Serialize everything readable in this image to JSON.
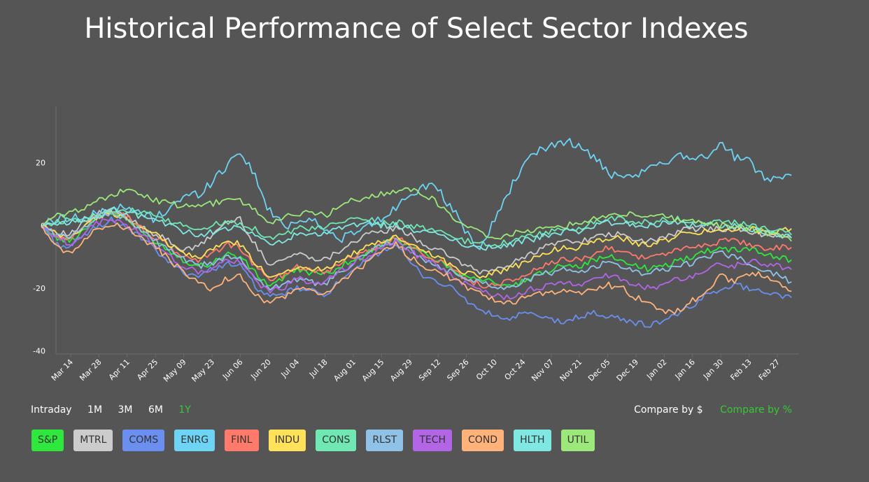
{
  "title": "Historical Performance of Select Sector Indexes",
  "accent": "#37c837",
  "ranges": [
    {
      "label": "Intraday",
      "active": false
    },
    {
      "label": "1M",
      "active": false
    },
    {
      "label": "3M",
      "active": false
    },
    {
      "label": "6M",
      "active": false
    },
    {
      "label": "1Y",
      "active": true
    }
  ],
  "compare": [
    {
      "label": "Compare by $",
      "active": false
    },
    {
      "label": "Compare by %",
      "active": true
    }
  ],
  "chart_data": {
    "type": "line",
    "title": "Historical Performance of Select Sector Indexes",
    "xlabel": "",
    "ylabel": "",
    "ylim": [
      -41,
      38
    ],
    "yticks": [
      20,
      0,
      -20,
      -40
    ],
    "x_labels": [
      "Mar 14",
      "Mar 28",
      "Apr 11",
      "Apr 25",
      "May 09",
      "May 23",
      "Jun 06",
      "Jun 20",
      "Jul 04",
      "Jul 18",
      "Aug 01",
      "Aug 15",
      "Aug 29",
      "Sep 12",
      "Sep 26",
      "Oct 10",
      "Oct 24",
      "Nov 07",
      "Nov 21",
      "Dec 05",
      "Dec 19",
      "Jan 02",
      "Jan 16",
      "Jan 30",
      "Feb 13",
      "Feb 27"
    ],
    "x_keypoints": [
      "Mar 01",
      "Mar 07",
      "Mar 14",
      "Mar 21",
      "Mar 28",
      "Apr 04",
      "Apr 11",
      "Apr 18",
      "Apr 25",
      "May 02",
      "May 09",
      "May 16",
      "May 23",
      "May 30",
      "Jun 06",
      "Jun 13",
      "Jun 20",
      "Jun 27",
      "Jul 04",
      "Jul 11",
      "Jul 18",
      "Jul 25",
      "Aug 01",
      "Aug 08",
      "Aug 15",
      "Aug 22",
      "Aug 29",
      "Sep 05",
      "Sep 12",
      "Sep 19",
      "Sep 26",
      "Oct 03",
      "Oct 10",
      "Oct 17",
      "Oct 24",
      "Oct 31",
      "Nov 07",
      "Nov 14",
      "Nov 21",
      "Nov 28",
      "Dec 05",
      "Dec 12",
      "Dec 19",
      "Dec 26",
      "Jan 02",
      "Jan 09",
      "Jan 16",
      "Jan 23",
      "Jan 30",
      "Feb 06",
      "Feb 13",
      "Feb 20",
      "Feb 27",
      "Mar 01"
    ],
    "series": [
      {
        "name": "S&P",
        "color": "#2ee83d",
        "values": [
          0,
          -4,
          -5,
          -1,
          3,
          4,
          2,
          -2,
          -5,
          -8,
          -11,
          -13,
          -12,
          -9,
          -10,
          -15,
          -19,
          -17,
          -14,
          -15,
          -16,
          -13,
          -11,
          -9,
          -6,
          -4,
          -7,
          -9,
          -11,
          -14,
          -16,
          -17,
          -18,
          -20,
          -18,
          -16,
          -14,
          -12,
          -13,
          -11,
          -10,
          -11,
          -13,
          -14,
          -13,
          -11,
          -10,
          -8,
          -7,
          -8,
          -7,
          -9,
          -10,
          -11
        ]
      },
      {
        "name": "MTRL",
        "color": "#cccccc",
        "values": [
          0,
          -2,
          -3,
          1,
          4,
          5,
          3,
          0,
          -3,
          -5,
          -8,
          -7,
          -3,
          1,
          2,
          -6,
          -12,
          -11,
          -9,
          -10,
          -11,
          -8,
          -5,
          -3,
          -2,
          -1,
          -3,
          -6,
          -8,
          -10,
          -13,
          -15,
          -14,
          -13,
          -10,
          -8,
          -6,
          -5,
          -5,
          -4,
          -3,
          -3,
          -5,
          -5,
          -4,
          -2,
          -1,
          -1,
          -1,
          -1,
          -2,
          -3,
          -3,
          -4
        ]
      },
      {
        "name": "COMS",
        "color": "#6a8ff0",
        "values": [
          0,
          -6,
          -7,
          -3,
          0,
          2,
          -1,
          -4,
          -8,
          -12,
          -15,
          -16,
          -14,
          -12,
          -13,
          -19,
          -23,
          -22,
          -20,
          -21,
          -22,
          -18,
          -15,
          -11,
          -8,
          -6,
          -12,
          -16,
          -18,
          -20,
          -24,
          -27,
          -29,
          -30,
          -28,
          -29,
          -30,
          -31,
          -29,
          -28,
          -29,
          -30,
          -31,
          -32,
          -30,
          -28,
          -26,
          -22,
          -20,
          -19,
          -20,
          -21,
          -22,
          -23
        ]
      },
      {
        "name": "ENRG",
        "color": "#6dd4f5",
        "values": [
          0,
          2,
          3,
          2,
          4,
          6,
          5,
          4,
          2,
          6,
          9,
          10,
          14,
          19,
          24,
          16,
          5,
          0,
          1,
          3,
          -2,
          -4,
          -3,
          0,
          2,
          6,
          10,
          13,
          11,
          5,
          -2,
          -8,
          2,
          11,
          19,
          23,
          26,
          27,
          25,
          22,
          17,
          14,
          16,
          18,
          20,
          23,
          22,
          22,
          26,
          22,
          20,
          16,
          15,
          16
        ]
      },
      {
        "name": "FINL",
        "color": "#ff7a6a",
        "values": [
          0,
          -3,
          -4,
          0,
          3,
          5,
          3,
          -1,
          -4,
          -7,
          -10,
          -11,
          -9,
          -6,
          -7,
          -13,
          -17,
          -16,
          -13,
          -14,
          -15,
          -12,
          -10,
          -8,
          -6,
          -4,
          -6,
          -9,
          -11,
          -14,
          -17,
          -19,
          -19,
          -18,
          -16,
          -14,
          -12,
          -11,
          -11,
          -9,
          -7,
          -8,
          -10,
          -10,
          -9,
          -8,
          -7,
          -6,
          -5,
          -5,
          -6,
          -7,
          -7,
          -7
        ]
      },
      {
        "name": "INDU",
        "color": "#ffe25a",
        "values": [
          0,
          -3,
          -4,
          0,
          3,
          4,
          2,
          -1,
          -3,
          -6,
          -9,
          -10,
          -8,
          -5,
          -6,
          -12,
          -16,
          -15,
          -13,
          -14,
          -14,
          -11,
          -9,
          -7,
          -5,
          -4,
          -6,
          -8,
          -10,
          -13,
          -15,
          -16,
          -15,
          -14,
          -12,
          -10,
          -8,
          -7,
          -7,
          -5,
          -4,
          -4,
          -6,
          -6,
          -5,
          -3,
          -2,
          -2,
          -1,
          -1,
          -1,
          -2,
          -2,
          -1
        ]
      },
      {
        "name": "CONS",
        "color": "#6fe8b3",
        "values": [
          0,
          1,
          2,
          2,
          4,
          5,
          5,
          4,
          3,
          1,
          0,
          -1,
          0,
          1,
          1,
          -1,
          -4,
          -3,
          -1,
          -1,
          -1,
          1,
          2,
          2,
          1,
          1,
          0,
          -1,
          -2,
          -4,
          -5,
          -6,
          -6,
          -5,
          -4,
          -3,
          -2,
          -1,
          -1,
          1,
          2,
          2,
          1,
          1,
          2,
          2,
          1,
          1,
          1,
          1,
          0,
          -1,
          -2,
          -3
        ]
      },
      {
        "name": "RLST",
        "color": "#8fc2e6",
        "values": [
          0,
          -3,
          -4,
          0,
          3,
          4,
          2,
          -2,
          -5,
          -8,
          -11,
          -13,
          -12,
          -10,
          -11,
          -16,
          -20,
          -19,
          -17,
          -18,
          -19,
          -15,
          -12,
          -9,
          -6,
          -5,
          -8,
          -11,
          -13,
          -15,
          -17,
          -18,
          -19,
          -20,
          -18,
          -16,
          -15,
          -14,
          -15,
          -13,
          -12,
          -13,
          -15,
          -15,
          -14,
          -13,
          -12,
          -10,
          -9,
          -10,
          -12,
          -14,
          -16,
          -18
        ]
      },
      {
        "name": "TECH",
        "color": "#b266e6",
        "values": [
          0,
          -4,
          -6,
          -2,
          1,
          2,
          0,
          -3,
          -6,
          -10,
          -13,
          -15,
          -14,
          -11,
          -12,
          -17,
          -21,
          -20,
          -17,
          -18,
          -18,
          -15,
          -12,
          -10,
          -7,
          -5,
          -8,
          -11,
          -13,
          -16,
          -19,
          -21,
          -22,
          -23,
          -21,
          -20,
          -19,
          -18,
          -19,
          -17,
          -16,
          -17,
          -19,
          -20,
          -19,
          -17,
          -16,
          -14,
          -12,
          -13,
          -11,
          -12,
          -13,
          -14
        ]
      },
      {
        "name": "COND",
        "color": "#ffb37a",
        "values": [
          0,
          -7,
          -9,
          -4,
          -1,
          1,
          -1,
          -4,
          -7,
          -11,
          -15,
          -18,
          -21,
          -17,
          -16,
          -22,
          -25,
          -23,
          -20,
          -21,
          -22,
          -18,
          -15,
          -12,
          -8,
          -6,
          -10,
          -13,
          -15,
          -17,
          -20,
          -22,
          -24,
          -25,
          -23,
          -22,
          -21,
          -21,
          -22,
          -20,
          -19,
          -20,
          -23,
          -24,
          -28,
          -27,
          -24,
          -21,
          -16,
          -18,
          -15,
          -16,
          -18,
          -21
        ]
      },
      {
        "name": "HLTH",
        "color": "#7fe8e3",
        "values": [
          0,
          0,
          1,
          2,
          3,
          5,
          4,
          3,
          2,
          0,
          -2,
          -3,
          -2,
          -1,
          -1,
          -3,
          -6,
          -5,
          -3,
          -3,
          -3,
          -1,
          0,
          1,
          0,
          0,
          -1,
          -2,
          -3,
          -5,
          -6,
          -7,
          -7,
          -6,
          -5,
          -4,
          -3,
          -2,
          -2,
          0,
          1,
          1,
          0,
          0,
          1,
          1,
          0,
          0,
          0,
          0,
          -1,
          -2,
          -3,
          -4
        ]
      },
      {
        "name": "UTIL",
        "color": "#9ce87a",
        "values": [
          0,
          3,
          4,
          6,
          8,
          10,
          11,
          10,
          8,
          7,
          6,
          6,
          7,
          8,
          8,
          5,
          1,
          2,
          4,
          4,
          3,
          6,
          8,
          9,
          10,
          11,
          12,
          10,
          7,
          3,
          0,
          -2,
          -4,
          -3,
          -2,
          -1,
          0,
          0,
          1,
          2,
          3,
          4,
          3,
          3,
          3,
          2,
          1,
          1,
          0,
          0,
          -1,
          -2,
          -3,
          -5
        ]
      }
    ]
  }
}
